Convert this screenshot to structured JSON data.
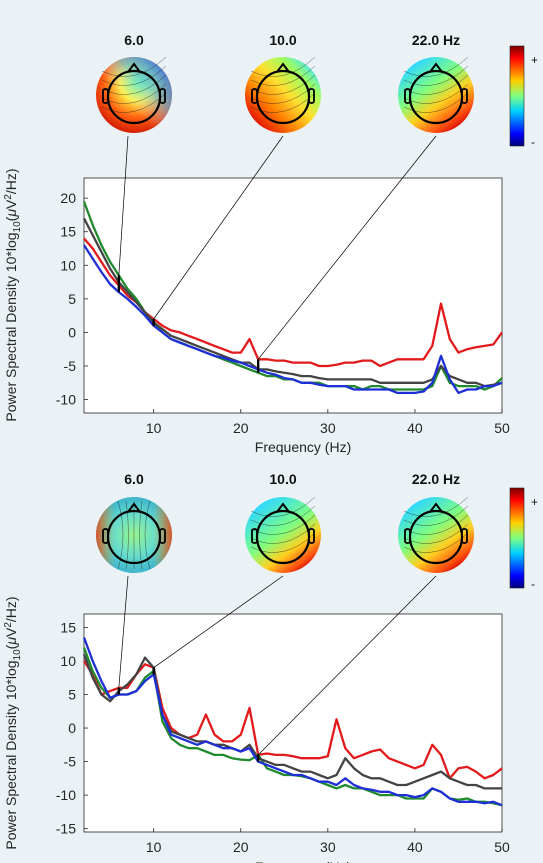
{
  "chart_data": [
    {
      "type": "line",
      "panel": "top",
      "x": [
        2,
        3,
        4,
        5,
        6,
        7,
        8,
        9,
        10,
        11,
        12,
        13,
        14,
        15,
        16,
        17,
        18,
        19,
        20,
        21,
        22,
        23,
        24,
        25,
        26,
        27,
        28,
        29,
        30,
        31,
        32,
        33,
        34,
        35,
        36,
        37,
        38,
        39,
        40,
        41,
        42,
        43,
        44,
        45,
        46,
        47,
        48,
        49,
        50
      ],
      "series": [
        {
          "color": "#e31a1c",
          "values": [
            14,
            12.5,
            10.5,
            8.5,
            7,
            5.5,
            4.5,
            3,
            2,
            1,
            0.3,
            0,
            -0.5,
            -1,
            -1.5,
            -2,
            -2.5,
            -3,
            -3,
            -1,
            -4,
            -4,
            -4.2,
            -4.2,
            -4.5,
            -4.5,
            -4.5,
            -5,
            -5,
            -4.8,
            -4.5,
            -4.5,
            -4.2,
            -4.2,
            -5,
            -4.5,
            -4,
            -4,
            -4,
            -4,
            -2,
            4.3,
            -1,
            -3,
            -2.5,
            -2.2,
            -2,
            -1.8,
            0
          ]
        },
        {
          "color": "#1f8a2e",
          "values": [
            19.5,
            16,
            13,
            10.5,
            8.5,
            6.5,
            5,
            3,
            1.5,
            0,
            -1,
            -1.5,
            -2,
            -2.5,
            -3,
            -3.5,
            -4,
            -4.5,
            -5,
            -5.5,
            -6,
            -6.5,
            -6.5,
            -7,
            -7,
            -7.5,
            -7.5,
            -7.5,
            -8,
            -8,
            -8,
            -8,
            -8.5,
            -8,
            -8,
            -8.5,
            -8.5,
            -8.5,
            -8.5,
            -8.5,
            -8,
            -5,
            -7.5,
            -8,
            -8,
            -8,
            -8.5,
            -8,
            -6.8
          ]
        },
        {
          "color": "#444444",
          "values": [
            17,
            14.5,
            12,
            9.5,
            7.5,
            6,
            4.5,
            3,
            1.5,
            0.5,
            -0.5,
            -1,
            -1.5,
            -2,
            -2.5,
            -3,
            -3.5,
            -4,
            -4.5,
            -4.5,
            -5.5,
            -5.5,
            -5.8,
            -6,
            -6.2,
            -6.5,
            -6.5,
            -6.8,
            -7,
            -7,
            -7,
            -7,
            -7,
            -7,
            -7.5,
            -7.5,
            -7.5,
            -7.5,
            -7.5,
            -7.5,
            -7,
            -5,
            -6.5,
            -7,
            -7.5,
            -7.5,
            -8,
            -7.8,
            -7.5
          ]
        },
        {
          "color": "#1e2fd6",
          "values": [
            13,
            11,
            9,
            7.2,
            6,
            5,
            3.8,
            2.5,
            1,
            0,
            -1,
            -1.5,
            -2,
            -2.5,
            -3,
            -3.5,
            -3.8,
            -4.2,
            -4.5,
            -5,
            -5.5,
            -6,
            -6.3,
            -6.8,
            -7,
            -7.5,
            -7.5,
            -7.8,
            -8,
            -8,
            -8,
            -8.5,
            -8.5,
            -8.5,
            -8.5,
            -8.5,
            -9,
            -9,
            -9,
            -8.8,
            -7.5,
            -3.5,
            -7,
            -9,
            -8.5,
            -8.5,
            -8,
            -8,
            -7.5
          ]
        }
      ],
      "ylim": [
        -12,
        23
      ],
      "xlim": [
        2,
        50
      ],
      "yticks": [
        -10,
        -5,
        0,
        5,
        10,
        15,
        20
      ],
      "xticks": [
        10,
        20,
        30,
        40,
        50
      ],
      "ylabel_prefix": "Power Spectral Density 10*log",
      "ylabel_sub": "10",
      "ylabel_mu": "μ",
      "ylabel_unit": "V",
      "ylabel_sup": "2",
      "ylabel_tail": "/Hz)",
      "xlabel": "Frequency (Hz)",
      "topo_labels": [
        "6.0",
        "10.0",
        "22.0 Hz"
      ],
      "topo_freqs": [
        6,
        10,
        22
      ],
      "colorbar_max": "+",
      "colorbar_min": "-",
      "grid": false
    },
    {
      "type": "line",
      "panel": "bottom",
      "x": [
        2,
        3,
        4,
        5,
        6,
        7,
        8,
        9,
        10,
        11,
        12,
        13,
        14,
        15,
        16,
        17,
        18,
        19,
        20,
        21,
        22,
        23,
        24,
        25,
        26,
        27,
        28,
        29,
        30,
        31,
        32,
        33,
        34,
        35,
        36,
        37,
        38,
        39,
        40,
        41,
        42,
        43,
        44,
        45,
        46,
        47,
        48,
        49,
        50
      ],
      "series": [
        {
          "color": "#e31a1c",
          "values": [
            10,
            8,
            5,
            5.5,
            6,
            6,
            8,
            9.5,
            9,
            3,
            0,
            -1,
            -1.5,
            -1,
            2,
            -1,
            -2,
            -2,
            -1,
            3,
            -4,
            -3.8,
            -4,
            -4,
            -4.2,
            -4.5,
            -4.5,
            -4.5,
            -4.2,
            1.3,
            -3,
            -4.5,
            -4,
            -3.5,
            -3.2,
            -4.5,
            -5,
            -5.5,
            -6,
            -5.5,
            -2.5,
            -4,
            -7.5,
            -6,
            -5.8,
            -6.5,
            -7.5,
            -7,
            -6
          ]
        },
        {
          "color": "#1f8a2e",
          "values": [
            12,
            8.5,
            6,
            4.5,
            5,
            5,
            5.5,
            7.5,
            8.5,
            1,
            -1.5,
            -2.5,
            -3,
            -3,
            -3.5,
            -4,
            -4,
            -4.5,
            -4.7,
            -4.8,
            -4,
            -6,
            -6.5,
            -7,
            -7,
            -7.2,
            -7.5,
            -8,
            -8.5,
            -9,
            -8.5,
            -9,
            -9,
            -9.5,
            -10,
            -10,
            -10,
            -10.5,
            -10.5,
            -10.5,
            -9,
            -9.5,
            -10.5,
            -10.7,
            -10.5,
            -11,
            -11,
            -11.2,
            -11.5
          ]
        },
        {
          "color": "#444444",
          "values": [
            11,
            7.5,
            5,
            4,
            5.5,
            6.5,
            8,
            10.5,
            9,
            2,
            -0.5,
            -1,
            -1.5,
            -2,
            -2,
            -2.5,
            -2.5,
            -3,
            -3.5,
            -2.5,
            -4.5,
            -5,
            -5.5,
            -5.5,
            -6,
            -6.5,
            -6.5,
            -7,
            -7.5,
            -7,
            -4.5,
            -6,
            -7,
            -7.5,
            -7.5,
            -8,
            -8.5,
            -8.5,
            -8,
            -7.5,
            -7,
            -6.5,
            -7.5,
            -8,
            -8.5,
            -8.5,
            -9,
            -9,
            -9
          ]
        },
        {
          "color": "#1e2fd6",
          "values": [
            13.5,
            10,
            7,
            4.5,
            5,
            5,
            5.5,
            7,
            8,
            2,
            -1,
            -1.5,
            -2,
            -2.5,
            -2,
            -2.5,
            -3,
            -3,
            -3.5,
            -3,
            -5,
            -5.5,
            -6,
            -6.5,
            -7,
            -7,
            -7.5,
            -8,
            -8,
            -8.5,
            -7.5,
            -8.5,
            -9,
            -9.2,
            -9.5,
            -9.5,
            -10,
            -10,
            -10.3,
            -10,
            -9,
            -9.5,
            -10.5,
            -11,
            -11,
            -11,
            -11.2,
            -11,
            -11.5
          ]
        }
      ],
      "ylim": [
        -15.5,
        17
      ],
      "xlim": [
        2,
        50
      ],
      "yticks": [
        -15,
        -10,
        -5,
        0,
        5,
        10,
        15
      ],
      "xticks": [
        10,
        20,
        30,
        40,
        50
      ],
      "ylabel_prefix": "Power Spectral Density 10*log",
      "ylabel_sub": "10",
      "ylabel_mu": "μ",
      "ylabel_unit": "V",
      "ylabel_sup": "2",
      "ylabel_tail": "/Hz)",
      "xlabel": "Frequency (Hz)",
      "topo_labels": [
        "6.0",
        "10.0",
        "22.0 Hz"
      ],
      "topo_freqs": [
        6,
        10,
        22
      ],
      "colorbar_max": "+",
      "colorbar_min": "-",
      "grid": false
    }
  ]
}
